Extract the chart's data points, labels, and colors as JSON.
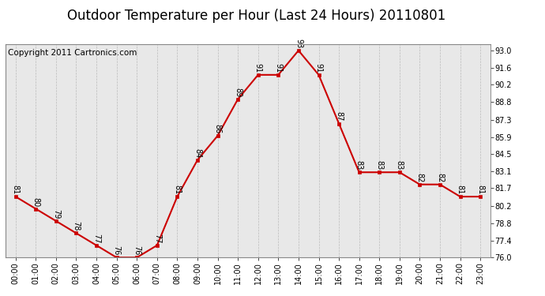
{
  "title": "Outdoor Temperature per Hour (Last 24 Hours) 20110801",
  "copyright": "Copyright 2011 Cartronics.com",
  "hours": [
    "00:00",
    "01:00",
    "02:00",
    "03:00",
    "04:00",
    "05:00",
    "06:00",
    "07:00",
    "08:00",
    "09:00",
    "10:00",
    "11:00",
    "12:00",
    "13:00",
    "14:00",
    "15:00",
    "16:00",
    "17:00",
    "18:00",
    "19:00",
    "20:00",
    "21:00",
    "22:00",
    "23:00"
  ],
  "temps": [
    81,
    80,
    79,
    78,
    77,
    76,
    76,
    77,
    81,
    84,
    86,
    89,
    91,
    91,
    93,
    91,
    87,
    83,
    83,
    83,
    82,
    82,
    81,
    81
  ],
  "line_color": "#cc0000",
  "marker_color": "#cc0000",
  "plot_bg_color": "#e8e8e8",
  "fig_bg_color": "#ffffff",
  "grid_color": "#bbbbbb",
  "yticks_right": [
    76.0,
    77.4,
    78.8,
    80.2,
    81.7,
    83.1,
    84.5,
    85.9,
    87.3,
    88.8,
    90.2,
    91.6,
    93.0
  ],
  "ylim": [
    76.0,
    93.5
  ],
  "title_fontsize": 12,
  "label_fontsize": 7,
  "copyright_fontsize": 7.5
}
